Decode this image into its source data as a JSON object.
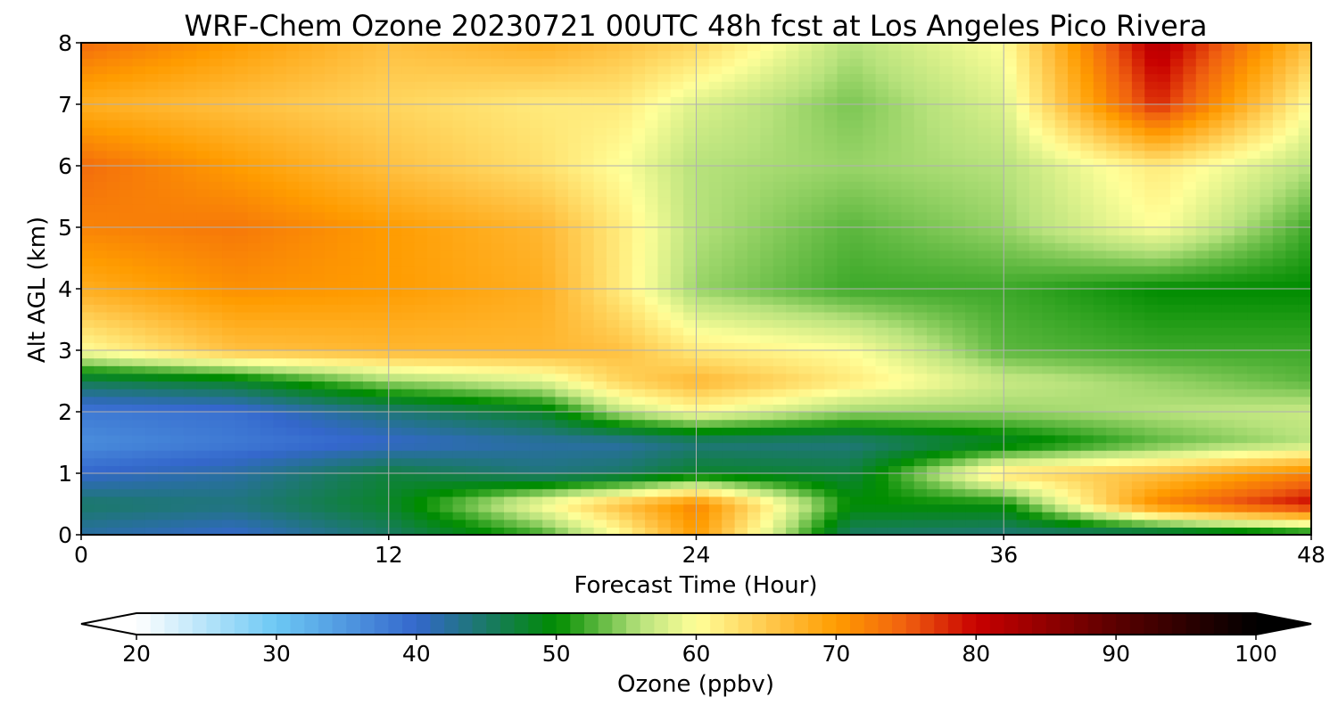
{
  "chart_data": {
    "type": "heatmap",
    "title": "WRF-Chem Ozone  20230721 00UTC 48h fcst at Los Angeles Pico Rivera",
    "xlabel": "Forecast Time (Hour)",
    "ylabel": "Alt AGL (km)",
    "xlim": [
      0,
      48
    ],
    "ylim": [
      0,
      8
    ],
    "x_ticks": [
      "0",
      "12",
      "24",
      "36",
      "48"
    ],
    "y_ticks": [
      "0",
      "1",
      "2",
      "3",
      "4",
      "5",
      "6",
      "7",
      "8"
    ],
    "grid": true,
    "x": [
      0,
      6,
      12,
      18,
      21,
      24,
      30,
      36,
      42,
      48
    ],
    "y": [
      0,
      0.5,
      1,
      1.5,
      2,
      2.5,
      3,
      4,
      5,
      6,
      7,
      8
    ],
    "z": [
      [
        42,
        40,
        45,
        52,
        60,
        70,
        45,
        44,
        44,
        48
      ],
      [
        45,
        44,
        48,
        60,
        66,
        72,
        50,
        50,
        72,
        80
      ],
      [
        40,
        42,
        47,
        44,
        45,
        48,
        47,
        63,
        66,
        72
      ],
      [
        36,
        38,
        40,
        42,
        42,
        44,
        44,
        48,
        53,
        56
      ],
      [
        38,
        39,
        44,
        48,
        56,
        60,
        55,
        55,
        56,
        57
      ],
      [
        46,
        48,
        55,
        58,
        64,
        67,
        62,
        57,
        55,
        53
      ],
      [
        60,
        66,
        67,
        67,
        66,
        62,
        60,
        53,
        52,
        52
      ],
      [
        68,
        71,
        70,
        68,
        62,
        55,
        52,
        52,
        50,
        50
      ],
      [
        72,
        73,
        70,
        67,
        62,
        56,
        53,
        55,
        60,
        52
      ],
      [
        74,
        70,
        66,
        63,
        60,
        56,
        55,
        56,
        62,
        56
      ],
      [
        68,
        66,
        64,
        62,
        62,
        58,
        54,
        58,
        78,
        60
      ],
      [
        74,
        70,
        66,
        68,
        66,
        64,
        56,
        60,
        82,
        66
      ]
    ],
    "colorbar": {
      "label": "Ozone  (ppbv)",
      "min": 20,
      "max": 100,
      "ticks": [
        "20",
        "30",
        "40",
        "50",
        "60",
        "70",
        "80",
        "90",
        "100"
      ],
      "extend": "both",
      "colormap": [
        [
          20,
          "#ffffff"
        ],
        [
          30,
          "#6cc8f4"
        ],
        [
          40,
          "#3467cc"
        ],
        [
          50,
          "#008c00"
        ],
        [
          56,
          "#b7e27c"
        ],
        [
          60,
          "#ffff99"
        ],
        [
          66,
          "#ffc040"
        ],
        [
          70,
          "#ff9c00"
        ],
        [
          75,
          "#f06010"
        ],
        [
          80,
          "#c80000"
        ],
        [
          90,
          "#5a0000"
        ],
        [
          100,
          "#000000"
        ]
      ]
    }
  }
}
